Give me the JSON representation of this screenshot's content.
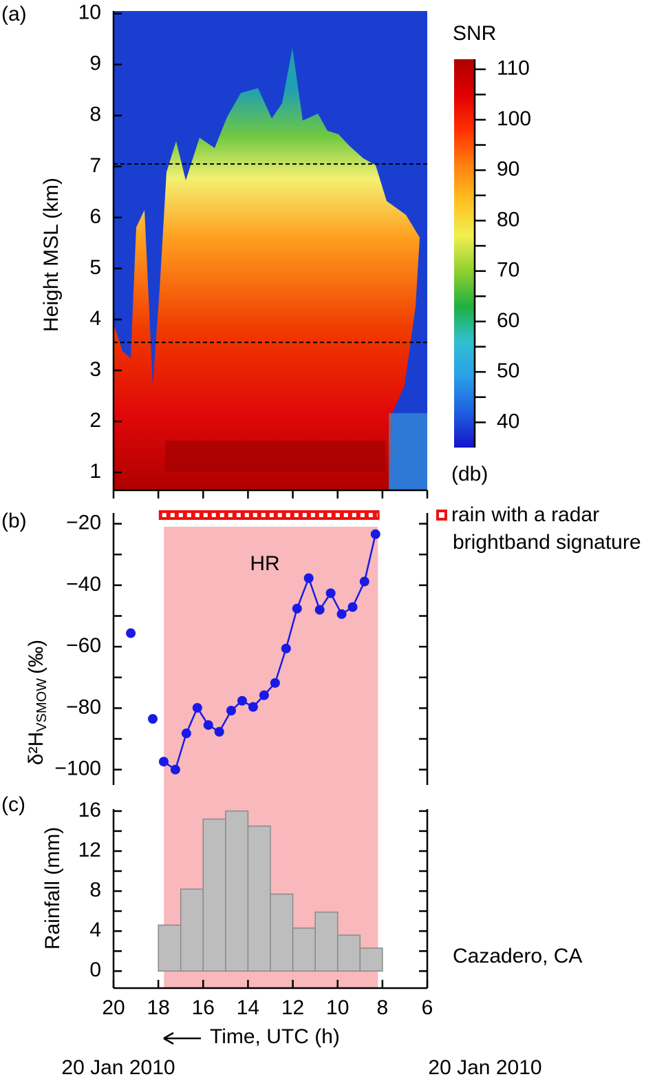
{
  "chart_data": [
    {
      "type": "heatmap",
      "panel": "(a)",
      "ylabel": "Height MSL (km)",
      "ylim": [
        0.65,
        10.05
      ],
      "yticks": [
        1,
        2,
        3,
        4,
        5,
        6,
        7,
        8,
        9,
        10
      ],
      "hlines": [
        7.05,
        3.55
      ],
      "colorbar": {
        "title": "SNR",
        "unit": "(db)",
        "lim": [
          35,
          112
        ],
        "ticks": [
          40,
          50,
          60,
          70,
          80,
          90,
          100,
          110
        ],
        "minorticks": [
          45,
          55,
          65,
          75,
          85,
          95,
          105
        ],
        "colormap": [
          "#1414c8",
          "#1f5fe0",
          "#2a9fe8",
          "#30c0d0",
          "#20b040",
          "#90d030",
          "#f0f050",
          "#ffc020",
          "#ff8010",
          "#ff3000",
          "#e00000",
          "#b00000"
        ]
      }
    },
    {
      "type": "scatter",
      "panel": "(b)",
      "ylabel": {
        "main": "δ²H",
        "sub": "VSMOW",
        "unit": "(‰)"
      },
      "ylim": [
        -105,
        -16.5
      ],
      "yticks": [
        {
          "value": -20,
          "label": "−20"
        },
        {
          "value": -40,
          "label": "−40"
        },
        {
          "value": -60,
          "label": "−60"
        },
        {
          "value": -80,
          "label": "−80"
        },
        {
          "value": -100,
          "label": "−100"
        }
      ],
      "yminorticks": [
        -30,
        -50,
        -70,
        -90
      ],
      "series": [
        {
          "color": "#1a1ae6",
          "x": [
            19.23,
            18.25
          ],
          "values": [
            -55.6,
            -83.5
          ]
        },
        {
          "color": "#1a1ae6",
          "line": true,
          "x": [
            17.76,
            17.24,
            16.75,
            16.26,
            15.77,
            15.28,
            14.75,
            14.26,
            13.77,
            13.28,
            12.79,
            12.3,
            11.81,
            11.29,
            10.8,
            10.31,
            9.82,
            9.33,
            8.8,
            8.31
          ],
          "values": [
            -97.4,
            -100,
            -88.2,
            -79.9,
            -85.5,
            -87.7,
            -80.8,
            -77.6,
            -79.6,
            -75.8,
            -71.8,
            -60.6,
            -47.6,
            -37.7,
            -48,
            -42.6,
            -49.4,
            -47.1,
            -38.8,
            -23.4
          ]
        }
      ],
      "span": {
        "range": [
          17.75,
          8.2
        ],
        "label": "HR",
        "color": "#f8b8bc"
      },
      "brightband": {
        "range": [
          17.98,
          8.13
        ],
        "color": "#ee1111",
        "legend": [
          "rain with a radar",
          "brightband signature"
        ]
      }
    },
    {
      "type": "histogram",
      "panel": "(c)",
      "ylabel": "Rainfall (mm)",
      "ylim": [
        -1.7,
        16.2
      ],
      "yticks": [
        0,
        4,
        8,
        12,
        16
      ],
      "yminorticks": [
        2,
        6,
        10,
        14
      ],
      "bins": [
        18,
        17,
        16,
        15,
        14,
        13,
        12,
        11,
        10,
        9,
        8
      ],
      "values": [
        4.6,
        8.2,
        15.2,
        16,
        14.5,
        7.7,
        4.3,
        5.9,
        3.6,
        2.3
      ],
      "color": "#bdbdbd",
      "annotation": "Cazadero, CA",
      "xlabel": "Time, UTC (h)",
      "xlim": [
        20,
        6
      ],
      "xticks": [
        20,
        18,
        16,
        14,
        12,
        10,
        8,
        6
      ],
      "dates": [
        "20 Jan 2010",
        "20 Jan 2010"
      ]
    }
  ]
}
